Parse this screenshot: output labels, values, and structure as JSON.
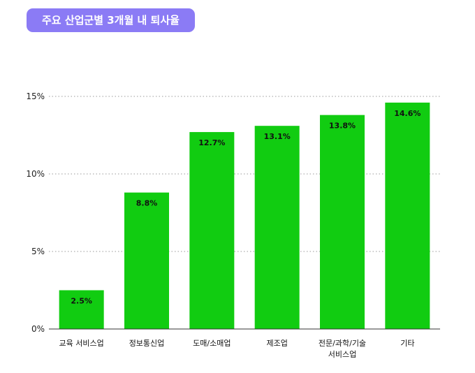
{
  "title": "주요 산업군별 3개월 내 퇴사율",
  "chart_data": {
    "type": "bar",
    "title": "주요 산업군별 3개월 내 퇴사율",
    "categories": [
      "교육 서비스업",
      "정보통신업",
      "도매/소매업",
      "제조업",
      "전문/과학/기술\n서비스업",
      "기타"
    ],
    "values": [
      2.5,
      8.8,
      12.7,
      13.1,
      13.8,
      14.6
    ],
    "value_labels": [
      "2.5%",
      "8.8%",
      "12.7%",
      "13.1%",
      "13.8%",
      "14.6%"
    ],
    "ylim": [
      0,
      15
    ],
    "yticks": [
      0,
      5,
      10,
      15
    ],
    "ytick_labels": [
      "0%",
      "5%",
      "10%",
      "15%"
    ],
    "grid": true,
    "xlabel": "",
    "ylabel": "",
    "colors": {
      "bar": "#11cc11",
      "title_bg": "#8b7bf5",
      "grid": "#9a9a9a"
    }
  }
}
